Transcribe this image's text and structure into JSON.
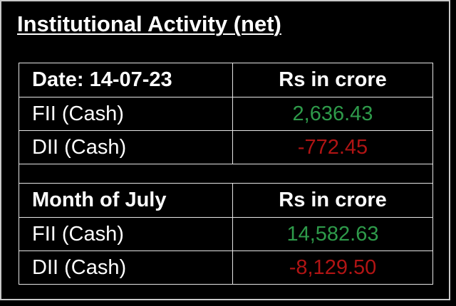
{
  "title": "Institutional Activity (net)",
  "colors": {
    "positive": "#2e9a4a",
    "negative": "#b01414",
    "text": "#ffffff",
    "background": "#000000"
  },
  "daily": {
    "header_label": "Date: 14-07-23",
    "header_unit": "Rs in crore",
    "rows": [
      {
        "label": "FII (Cash)",
        "value": "2,636.43"
      },
      {
        "label": "DII (Cash)",
        "value": "-772.45"
      }
    ]
  },
  "monthly": {
    "header_label": "Month of July",
    "header_unit": "Rs in crore",
    "rows": [
      {
        "label": "FII (Cash)",
        "value": "14,582.63"
      },
      {
        "label": "DII (Cash)",
        "value": "-8,129.50"
      }
    ]
  }
}
